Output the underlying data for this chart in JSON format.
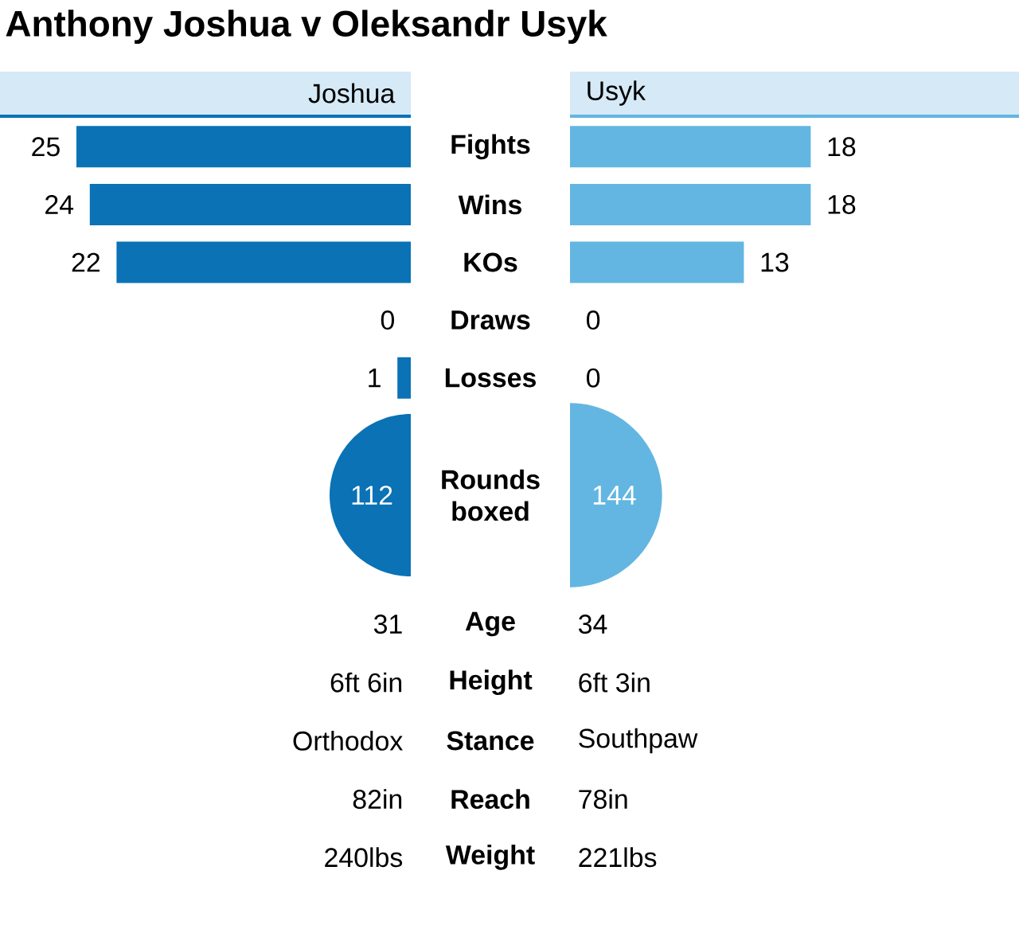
{
  "chart_data": [
    {
      "type": "bar",
      "title": "Anthony Joshua v Oleksandr Usyk",
      "orientation": "horizontal",
      "categories": [
        "Fights",
        "Wins",
        "KOs",
        "Draws",
        "Losses"
      ],
      "series": [
        {
          "name": "Joshua",
          "color": "#0a72b5",
          "values": [
            25,
            24,
            22,
            0,
            1
          ]
        }
      ],
      "data_labels": true,
      "legend": "top"
    },
    {
      "type": "bar",
      "orientation": "horizontal",
      "categories": [
        null,
        null,
        null,
        null,
        null
      ],
      "series": [
        {
          "name": "Usyk",
          "color": "#63b6e1",
          "values": [
            18,
            18,
            13,
            0,
            0
          ]
        }
      ],
      "data_labels": true,
      "legend": "top"
    },
    {
      "type": "other",
      "categories": [
        "Rounds boxed"
      ],
      "series": [
        {
          "color": "#0a72b5",
          "values": [
            112
          ]
        },
        {
          "color": "#63b6e1",
          "values": [
            144
          ]
        }
      ],
      "data_labels": true
    },
    {
      "type": "other",
      "categories": [
        "Age",
        "Height",
        "Stance",
        "Reach",
        "Weight"
      ],
      "series": [
        {
          "values": [
            null,
            null,
            null,
            null,
            null
          ],
          "value_labels": [
            "31",
            "6ft 6in",
            "Orthodox",
            "82in",
            "240lbs"
          ]
        },
        {
          "values": [
            null,
            null,
            null,
            null,
            null
          ],
          "value_labels": [
            "34",
            "6ft 3in",
            "Southpaw",
            "78in",
            "221lbs"
          ]
        }
      ]
    }
  ]
}
